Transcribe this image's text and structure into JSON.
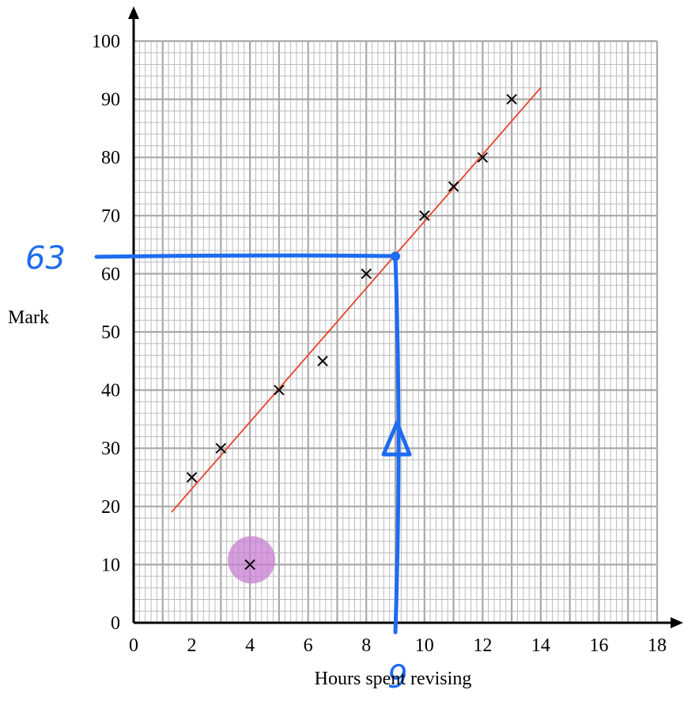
{
  "chart_data": {
    "type": "scatter",
    "xlabel": "Hours spent revising",
    "ylabel": "Mark",
    "xlim": [
      0,
      18
    ],
    "ylim": [
      0,
      100
    ],
    "x_ticks": [
      0,
      2,
      4,
      6,
      8,
      10,
      12,
      14,
      16,
      18
    ],
    "y_ticks": [
      0,
      10,
      20,
      30,
      40,
      50,
      60,
      70,
      80,
      90,
      100
    ],
    "grid": true,
    "points": [
      {
        "x": 2,
        "y": 25
      },
      {
        "x": 3,
        "y": 30
      },
      {
        "x": 4,
        "y": 10,
        "highlighted": true
      },
      {
        "x": 5,
        "y": 40
      },
      {
        "x": 6.5,
        "y": 45
      },
      {
        "x": 8,
        "y": 60
      },
      {
        "x": 10,
        "y": 70
      },
      {
        "x": 11,
        "y": 75
      },
      {
        "x": 12,
        "y": 80
      },
      {
        "x": 13,
        "y": 90
      }
    ],
    "line_of_best_fit": {
      "start": {
        "x": 1.3,
        "y": 19
      },
      "end": {
        "x": 14,
        "y": 92
      },
      "color": "#e8412c"
    },
    "annotation": {
      "x": 9,
      "y": 63,
      "x_label": "9",
      "y_label": "63",
      "color": "#1e6cf0",
      "highlight_color": "#c77dd0"
    },
    "colors": {
      "grid_major": "#a9a9a9",
      "grid_minor": "#bcbcbc",
      "points": "#000000"
    }
  }
}
